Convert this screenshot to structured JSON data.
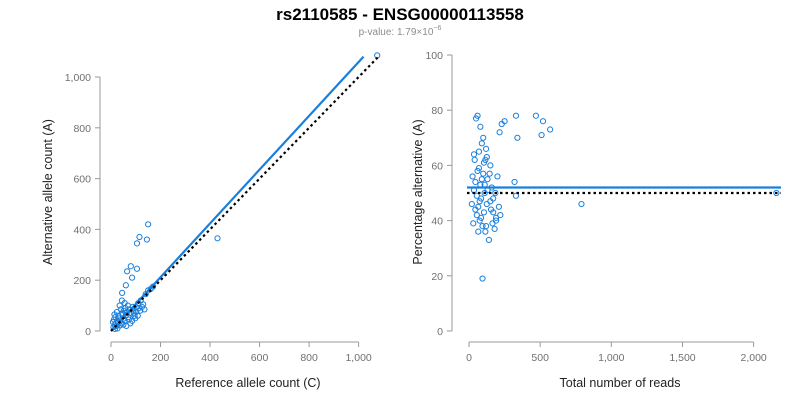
{
  "title": "rs2110585 - ENSG00000113558",
  "subtitle": {
    "prefix": "p-value: 1.79×10",
    "exponent": "−6"
  },
  "colors": {
    "series": "#1a7fdc",
    "reference_line": "#000000",
    "axis": "#9a9a9a",
    "tick_text": "#707070"
  },
  "chart_data": [
    {
      "type": "scatter",
      "xlabel": "Reference allele count (C)",
      "ylabel": "Alternative allele count (A)",
      "xlim": [
        0,
        1050
      ],
      "ylim": [
        0,
        1000
      ],
      "xticks": [
        0,
        200,
        400,
        600,
        800,
        1000
      ],
      "xtick_labels": [
        "0",
        "200",
        "400",
        "600",
        "800",
        "1,000"
      ],
      "yticks": [
        0,
        200,
        400,
        600,
        800,
        1000
      ],
      "ytick_labels": [
        "0",
        "200",
        "400",
        "600",
        "800",
        "1,000"
      ],
      "fit_line": {
        "style": "solid",
        "color": "#1a7fdc",
        "x": [
          0,
          1020
        ],
        "y": [
          0,
          1080
        ]
      },
      "reference_line": {
        "style": "dotted",
        "color": "#000000",
        "x": [
          0,
          1080
        ],
        "y": [
          0,
          1080
        ]
      },
      "points": [
        {
          "x": 1075,
          "y": 1085
        },
        {
          "x": 430,
          "y": 365
        },
        {
          "x": 150,
          "y": 420
        },
        {
          "x": 145,
          "y": 360
        },
        {
          "x": 115,
          "y": 370
        },
        {
          "x": 105,
          "y": 345
        },
        {
          "x": 80,
          "y": 255
        },
        {
          "x": 105,
          "y": 245
        },
        {
          "x": 65,
          "y": 235
        },
        {
          "x": 85,
          "y": 210
        },
        {
          "x": 60,
          "y": 180
        },
        {
          "x": 45,
          "y": 150
        },
        {
          "x": 160,
          "y": 165
        },
        {
          "x": 170,
          "y": 175
        },
        {
          "x": 150,
          "y": 160
        },
        {
          "x": 140,
          "y": 145
        },
        {
          "x": 120,
          "y": 120
        },
        {
          "x": 130,
          "y": 105
        },
        {
          "x": 110,
          "y": 110
        },
        {
          "x": 100,
          "y": 95
        },
        {
          "x": 90,
          "y": 80
        },
        {
          "x": 95,
          "y": 60
        },
        {
          "x": 80,
          "y": 70
        },
        {
          "x": 70,
          "y": 55
        },
        {
          "x": 60,
          "y": 62
        },
        {
          "x": 50,
          "y": 48
        },
        {
          "x": 45,
          "y": 70
        },
        {
          "x": 40,
          "y": 85
        },
        {
          "x": 35,
          "y": 100
        },
        {
          "x": 30,
          "y": 60
        },
        {
          "x": 25,
          "y": 40
        },
        {
          "x": 20,
          "y": 30
        },
        {
          "x": 15,
          "y": 25
        },
        {
          "x": 10,
          "y": 15
        },
        {
          "x": 12,
          "y": 45
        },
        {
          "x": 18,
          "y": 55
        },
        {
          "x": 22,
          "y": 20
        },
        {
          "x": 28,
          "y": 35
        },
        {
          "x": 32,
          "y": 50
        },
        {
          "x": 38,
          "y": 42
        },
        {
          "x": 42,
          "y": 30
        },
        {
          "x": 48,
          "y": 65
        },
        {
          "x": 52,
          "y": 80
        },
        {
          "x": 55,
          "y": 40
        },
        {
          "x": 58,
          "y": 90
        },
        {
          "x": 65,
          "y": 75
        },
        {
          "x": 72,
          "y": 45
        },
        {
          "x": 75,
          "y": 85
        },
        {
          "x": 85,
          "y": 40
        },
        {
          "x": 88,
          "y": 95
        },
        {
          "x": 92,
          "y": 70
        },
        {
          "x": 98,
          "y": 50
        },
        {
          "x": 102,
          "y": 75
        },
        {
          "x": 108,
          "y": 60
        },
        {
          "x": 112,
          "y": 90
        },
        {
          "x": 118,
          "y": 80
        },
        {
          "x": 125,
          "y": 95
        },
        {
          "x": 135,
          "y": 85
        },
        {
          "x": 62,
          "y": 20
        },
        {
          "x": 78,
          "y": 30
        },
        {
          "x": 14,
          "y": 65
        },
        {
          "x": 24,
          "y": 75
        },
        {
          "x": 8,
          "y": 35
        },
        {
          "x": 36,
          "y": 22
        },
        {
          "x": 68,
          "y": 100
        },
        {
          "x": 55,
          "y": 110
        },
        {
          "x": 44,
          "y": 120
        },
        {
          "x": 26,
          "y": 10
        },
        {
          "x": 16,
          "y": 8
        },
        {
          "x": 50,
          "y": 25
        }
      ]
    },
    {
      "type": "scatter",
      "xlabel": "Total number of reads",
      "ylabel": "Percentage alternative (A)",
      "xlim": [
        0,
        2150
      ],
      "ylim": [
        0,
        100
      ],
      "xticks": [
        0,
        500,
        1000,
        1500,
        2000
      ],
      "xtick_labels": [
        "0",
        "500",
        "1,000",
        "1,500",
        "2,000"
      ],
      "yticks": [
        0,
        20,
        40,
        60,
        80,
        100
      ],
      "ytick_labels": [
        "0",
        "20",
        "40",
        "60",
        "80",
        "100"
      ],
      "fit_line": {
        "style": "solid",
        "color": "#1a7fdc",
        "y": 52
      },
      "reference_line": {
        "style": "dotted",
        "color": "#000000",
        "y": 50
      },
      "points": [
        {
          "x": 2160,
          "y": 50
        },
        {
          "x": 790,
          "y": 46
        },
        {
          "x": 570,
          "y": 73
        },
        {
          "x": 520,
          "y": 76
        },
        {
          "x": 510,
          "y": 71
        },
        {
          "x": 470,
          "y": 78
        },
        {
          "x": 330,
          "y": 78
        },
        {
          "x": 340,
          "y": 70
        },
        {
          "x": 320,
          "y": 54
        },
        {
          "x": 330,
          "y": 49
        },
        {
          "x": 250,
          "y": 76
        },
        {
          "x": 230,
          "y": 75
        },
        {
          "x": 215,
          "y": 72
        },
        {
          "x": 200,
          "y": 56
        },
        {
          "x": 210,
          "y": 45
        },
        {
          "x": 220,
          "y": 42
        },
        {
          "x": 190,
          "y": 40
        },
        {
          "x": 180,
          "y": 37
        },
        {
          "x": 170,
          "y": 48
        },
        {
          "x": 160,
          "y": 52
        },
        {
          "x": 150,
          "y": 60
        },
        {
          "x": 155,
          "y": 44
        },
        {
          "x": 140,
          "y": 33
        },
        {
          "x": 130,
          "y": 55
        },
        {
          "x": 125,
          "y": 46
        },
        {
          "x": 120,
          "y": 38
        },
        {
          "x": 115,
          "y": 62
        },
        {
          "x": 110,
          "y": 50
        },
        {
          "x": 105,
          "y": 43
        },
        {
          "x": 100,
          "y": 57
        },
        {
          "x": 95,
          "y": 19
        },
        {
          "x": 90,
          "y": 68
        },
        {
          "x": 85,
          "y": 41
        },
        {
          "x": 80,
          "y": 53
        },
        {
          "x": 75,
          "y": 47
        },
        {
          "x": 70,
          "y": 65
        },
        {
          "x": 65,
          "y": 36
        },
        {
          "x": 60,
          "y": 58
        },
        {
          "x": 55,
          "y": 49
        },
        {
          "x": 50,
          "y": 77
        },
        {
          "x": 45,
          "y": 44
        },
        {
          "x": 40,
          "y": 62
        },
        {
          "x": 35,
          "y": 51
        },
        {
          "x": 30,
          "y": 39
        },
        {
          "x": 25,
          "y": 56
        },
        {
          "x": 20,
          "y": 46
        },
        {
          "x": 60,
          "y": 78
        },
        {
          "x": 80,
          "y": 74
        },
        {
          "x": 100,
          "y": 70
        },
        {
          "x": 120,
          "y": 66
        },
        {
          "x": 70,
          "y": 59
        },
        {
          "x": 90,
          "y": 55
        },
        {
          "x": 110,
          "y": 53
        },
        {
          "x": 130,
          "y": 51
        },
        {
          "x": 150,
          "y": 47
        },
        {
          "x": 170,
          "y": 43
        },
        {
          "x": 190,
          "y": 41
        },
        {
          "x": 75,
          "y": 40
        },
        {
          "x": 95,
          "y": 38
        },
        {
          "x": 115,
          "y": 36
        },
        {
          "x": 55,
          "y": 42
        },
        {
          "x": 65,
          "y": 45
        },
        {
          "x": 85,
          "y": 48
        },
        {
          "x": 105,
          "y": 61
        },
        {
          "x": 125,
          "y": 63
        },
        {
          "x": 45,
          "y": 54
        },
        {
          "x": 35,
          "y": 64
        },
        {
          "x": 145,
          "y": 57
        },
        {
          "x": 165,
          "y": 39
        },
        {
          "x": 185,
          "y": 50
        }
      ]
    }
  ]
}
